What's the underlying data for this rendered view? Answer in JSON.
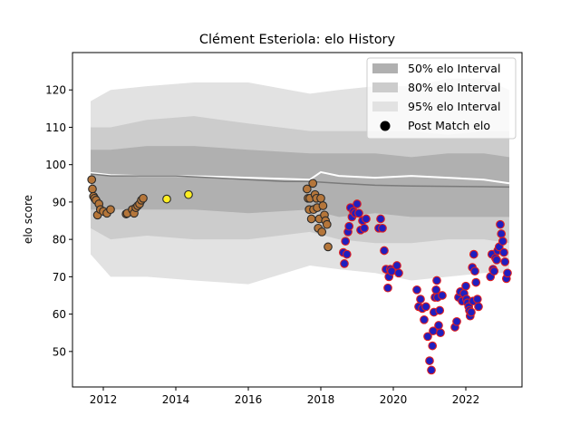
{
  "chart_data": {
    "type": "scatter",
    "title": "Clément Esteriola: elo History",
    "xlabel": "",
    "ylabel": "elo score",
    "xlim": [
      2011.15,
      2023.55
    ],
    "ylim": [
      40.5,
      130
    ],
    "xticks": [
      2012,
      2014,
      2016,
      2018,
      2020,
      2022
    ],
    "yticks": [
      50,
      60,
      70,
      80,
      90,
      100,
      110,
      120
    ],
    "grid": false,
    "legend_position": "top-right",
    "legend": [
      {
        "label": "50% elo Interval",
        "kind": "band"
      },
      {
        "label": "80% elo Interval",
        "kind": "band"
      },
      {
        "label": "95% elo Interval",
        "kind": "band"
      },
      {
        "label": "Post Match elo",
        "kind": "marker"
      }
    ],
    "colors": {
      "band50": "#b0b0b0",
      "band80": "#cccccc",
      "band95": "#e2e2e2",
      "median_line": "#7a7a7a",
      "mean_line": "#ffffff",
      "brown_marker": "#b5763a",
      "yellow_marker": "#ffee22",
      "blue_marker": "#1f1fbf",
      "red_edge": "#e01e1e"
    },
    "bands": {
      "x": [
        2011.65,
        2012.2,
        2013.2,
        2014.5,
        2016.0,
        2017.7,
        2018.5,
        2019.5,
        2020.5,
        2021.5,
        2022.5,
        2023.2
      ],
      "p95_low": [
        76,
        70,
        70,
        69,
        68,
        73,
        72,
        71,
        69,
        70,
        71,
        71
      ],
      "p95_high": [
        117,
        120,
        121,
        122,
        122,
        119,
        120,
        121,
        121,
        123,
        123,
        120
      ],
      "p80_low": [
        83,
        80,
        81,
        80,
        80,
        82,
        80,
        79,
        79,
        80,
        80,
        79
      ],
      "p80_high": [
        110,
        110,
        112,
        113,
        111,
        109,
        109,
        109,
        109,
        108,
        109,
        109
      ],
      "p50_low": [
        88,
        88,
        88,
        88,
        87,
        88,
        86,
        87,
        86,
        86,
        86,
        86
      ],
      "p50_high": [
        104,
        104,
        105,
        105,
        104,
        103,
        103,
        103,
        102,
        103,
        103,
        102
      ]
    },
    "median_line": {
      "x": [
        2011.65,
        2012.2,
        2013.0,
        2014.0,
        2015.0,
        2016.0,
        2017.0,
        2017.7,
        2018.5,
        2019.5,
        2020.5,
        2021.5,
        2022.5,
        2023.2
      ],
      "y": [
        97.5,
        97,
        97,
        97,
        96.5,
        96,
        95.5,
        95.5,
        95,
        94.5,
        94.3,
        94.2,
        94.1,
        94
      ]
    },
    "mean_line": {
      "x": [
        2011.65,
        2012.2,
        2013.0,
        2014.0,
        2015.0,
        2016.0,
        2017.0,
        2017.7,
        2018.0,
        2018.5,
        2019.5,
        2020.5,
        2021.5,
        2022.5,
        2023.2
      ],
      "y": [
        97.8,
        97.2,
        97,
        97,
        96.8,
        96.5,
        96.2,
        96,
        98,
        97,
        96.5,
        97,
        96.5,
        96,
        95
      ]
    },
    "series": [
      {
        "marker": "brown",
        "x": [
          2011.68,
          2011.7,
          2011.73,
          2011.76,
          2011.8,
          2011.84,
          2011.88,
          2011.92,
          2012.0,
          2012.1,
          2012.2,
          2012.63,
          2012.66,
          2012.8,
          2012.85,
          2012.9,
          2012.95,
          2013.0,
          2013.05,
          2013.1,
          2017.62,
          2017.65,
          2017.68,
          2017.7,
          2017.74,
          2017.78,
          2017.8,
          2017.84,
          2017.88,
          2017.9,
          2017.93,
          2017.96,
          2018.0,
          2018.03,
          2018.06,
          2018.1,
          2018.13,
          2018.17,
          2018.2
        ],
        "y": [
          96,
          93.5,
          91.5,
          91,
          90.5,
          86.5,
          89.5,
          88,
          87.5,
          87,
          88,
          86.8,
          87,
          88,
          87,
          88.5,
          89,
          89.5,
          90.5,
          91,
          93.5,
          91,
          88,
          91,
          85.5,
          95,
          88,
          92,
          91,
          88.5,
          83,
          85.5,
          91,
          82,
          89,
          86.5,
          85,
          84,
          78
        ]
      },
      {
        "marker": "yellow",
        "x": [
          2013.75,
          2014.35
        ],
        "y": [
          90.8,
          92
        ]
      },
      {
        "marker": "blue",
        "x": [
          2018.62,
          2018.65,
          2018.68,
          2018.72,
          2018.75,
          2018.78,
          2018.82,
          2018.86,
          2018.9,
          2018.95,
          2019.0,
          2019.05,
          2019.1,
          2019.15,
          2019.2,
          2019.25,
          2019.6,
          2019.65,
          2019.7,
          2019.75,
          2019.8,
          2019.85,
          2019.88,
          2019.92,
          2019.95,
          2020.1,
          2020.15,
          2020.65,
          2020.7,
          2020.75,
          2020.8,
          2020.85,
          2020.9,
          2020.95,
          2021.0,
          2021.05,
          2021.08,
          2021.1,
          2021.12,
          2021.15,
          2021.18,
          2021.2,
          2021.22,
          2021.25,
          2021.28,
          2021.3,
          2021.35,
          2021.7,
          2021.75,
          2021.8,
          2021.85,
          2021.9,
          2021.95,
          2022.0,
          2022.02,
          2022.05,
          2022.08,
          2022.1,
          2022.12,
          2022.15,
          2022.18,
          2022.2,
          2022.22,
          2022.25,
          2022.28,
          2022.32,
          2022.35,
          2022.68,
          2022.72,
          2022.75,
          2022.78,
          2022.82,
          2022.85,
          2022.88,
          2022.92,
          2022.95,
          2022.98,
          2023.02,
          2023.05,
          2023.08,
          2023.12,
          2023.15
        ],
        "y": [
          76.5,
          73.5,
          79.5,
          76,
          82,
          83.5,
          88.5,
          86,
          87.5,
          87,
          89.5,
          87,
          82.5,
          85,
          83,
          85.5,
          83,
          85.5,
          83,
          77,
          72,
          67,
          70,
          72,
          71.5,
          73,
          71,
          66.5,
          62,
          64,
          61.5,
          58.5,
          62,
          54,
          47.5,
          45,
          51.5,
          55.5,
          60.5,
          64.5,
          66.5,
          69,
          64.5,
          57,
          61,
          55,
          65,
          56.5,
          58,
          64.5,
          66,
          63.5,
          65.5,
          67.5,
          64,
          63,
          62,
          61,
          59.5,
          60.5,
          72.5,
          63.5,
          76,
          71.5,
          68.5,
          64,
          62,
          70,
          76,
          72,
          71.5,
          75,
          74.5,
          77,
          78,
          84,
          81.5,
          79.5,
          76.5,
          74,
          69.5,
          71
        ]
      }
    ]
  }
}
